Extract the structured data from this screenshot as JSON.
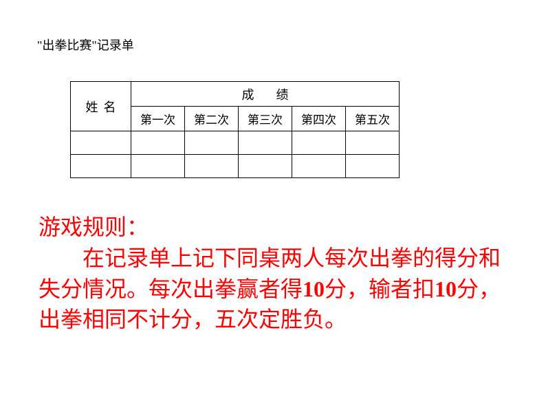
{
  "page": {
    "title": "\"出拳比赛\"记录单",
    "background_color": "#ffffff",
    "text_color": "#000000",
    "accent_color": "#ff0000"
  },
  "table": {
    "name_header": "姓名",
    "score_header": "成绩",
    "columns": [
      "第一次",
      "第二次",
      "第三次",
      "第四次",
      "第五次"
    ],
    "rows": [
      [
        "",
        "",
        "",
        "",
        "",
        ""
      ],
      [
        "",
        "",
        "",
        "",
        "",
        ""
      ]
    ],
    "border_color": "#000000",
    "border_width": 1.5,
    "name_col_width": 88,
    "round_col_width": 78,
    "header_fontsize": 18,
    "cell_fontsize": 17
  },
  "rules": {
    "title": "游戏规则：",
    "body_parts": [
      "在记录单上记下同桌两人每次出拳的得分和失分情况。每次出拳赢者得",
      "10",
      "分，输者扣",
      "10",
      "分，出拳相同不计分，五次定胜负。"
    ],
    "font_color": "#ff0000",
    "fontsize": 32,
    "line_height": 1.4,
    "indent_chars": 2
  }
}
